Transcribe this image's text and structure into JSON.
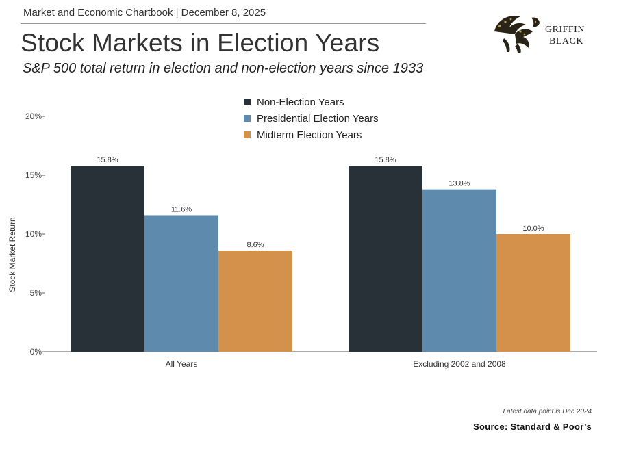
{
  "header": {
    "chartbook_line": "Market and Economic Chartbook | December 8, 2025",
    "title": "Stock Markets in Election Years",
    "subtitle": "S&P 500 total return in election and non-election years since 1933"
  },
  "logo": {
    "line1": "GRIFFIN",
    "line2": "BLACK",
    "icon": "griffin-icon"
  },
  "chart_data": {
    "type": "bar",
    "categories": [
      "All Years",
      "Excluding 2002 and 2008"
    ],
    "series": [
      {
        "name": "Non-Election Years",
        "color": "#283137",
        "values": [
          15.8,
          15.8
        ],
        "labels": [
          "15.8%",
          "15.8%"
        ]
      },
      {
        "name": "Presidential Election Years",
        "color": "#5e8aad",
        "values": [
          11.6,
          13.8
        ],
        "labels": [
          "11.6%",
          "13.8%"
        ]
      },
      {
        "name": "Midterm Election Years",
        "color": "#d4914c",
        "values": [
          8.6,
          10.0
        ],
        "labels": [
          "8.6%",
          "10.0%"
        ]
      }
    ],
    "ylabel": "Stock Market Return",
    "ylim": [
      0,
      20
    ],
    "yticks": [
      0,
      5,
      10,
      15,
      20
    ],
    "ytick_labels": [
      "0%",
      "5%",
      "10%",
      "15%",
      "20%"
    ],
    "legend_position": "top-center",
    "grid": false
  },
  "footer": {
    "footnote": "Latest data point is Dec 2024",
    "source": "Source: Standard & Poor’s"
  }
}
